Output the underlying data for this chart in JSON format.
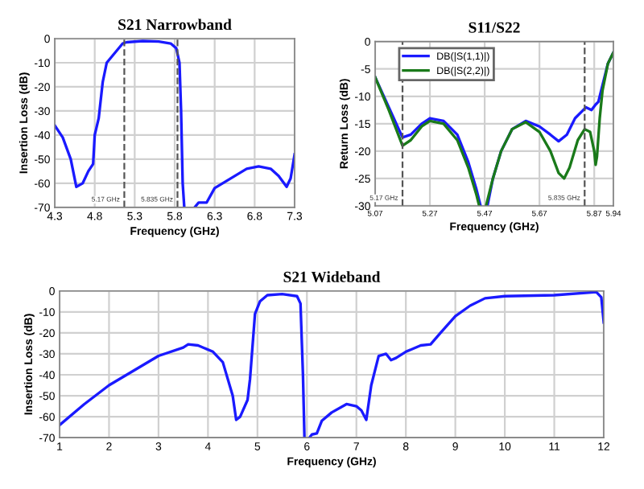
{
  "chart_data": [
    {
      "type": "line",
      "title": "S21 Narrowband",
      "xlabel": "Frequency (GHz)",
      "ylabel": "Insertion Loss (dB)",
      "xlim": [
        4.3,
        7.3
      ],
      "xticks": [
        4.3,
        4.8,
        5.3,
        5.8,
        6.3,
        6.8,
        7.3
      ],
      "ylim": [
        -70,
        0
      ],
      "yticks": [
        -70,
        -60,
        -50,
        -40,
        -30,
        -20,
        -10,
        0
      ],
      "grid": true,
      "legend": false,
      "ref_lines": [
        {
          "axis": "x",
          "value": 5.17,
          "label": "5.17 GHz",
          "line_style": "dashed",
          "color": "#555555"
        },
        {
          "axis": "x",
          "value": 5.835,
          "label": "5.835 GHz",
          "line_style": "dashed",
          "color": "#555555"
        }
      ],
      "series": [
        {
          "color": "#1a1aff",
          "x": [
            4.3,
            4.4,
            4.5,
            4.57,
            4.65,
            4.72,
            4.78,
            4.8,
            4.85,
            4.9,
            4.95,
            5.05,
            5.15,
            5.2,
            5.4,
            5.6,
            5.75,
            5.82,
            5.86,
            5.88,
            5.9,
            5.92,
            6.0,
            6.05,
            6.1,
            6.2,
            6.3,
            6.4,
            6.5,
            6.7,
            6.85,
            7.0,
            7.1,
            7.2,
            7.25,
            7.3
          ],
          "values": [
            -36,
            -41,
            -50,
            -61.5,
            -60,
            -55,
            -52,
            -40,
            -33,
            -18,
            -10,
            -6,
            -2,
            -1.5,
            -1,
            -1.2,
            -2,
            -4,
            -10,
            -30,
            -60,
            -70,
            null,
            -70,
            -68,
            -68,
            -62,
            -60,
            -58,
            -54,
            -53,
            -54,
            -57,
            -61.5,
            -58,
            -48
          ]
        }
      ]
    },
    {
      "type": "line",
      "title": "S11/S22",
      "xlabel": "Frequency (GHz)",
      "ylabel": "Return Loss (dB)",
      "xlim": [
        5.07,
        5.94
      ],
      "xticks": [
        5.07,
        5.27,
        5.47,
        5.67,
        5.87,
        5.94
      ],
      "ylim": [
        -30,
        0
      ],
      "yticks": [
        -30,
        -25,
        -20,
        -15,
        -10,
        -5,
        0
      ],
      "grid": true,
      "legend": "top left",
      "ref_lines": [
        {
          "axis": "x",
          "value": 5.17,
          "label": "5.17 GHz",
          "line_style": "dashed",
          "color": "#555555"
        },
        {
          "axis": "x",
          "value": 5.835,
          "label": "5.835 GHz",
          "line_style": "dashed",
          "color": "#555555"
        }
      ],
      "series": [
        {
          "name": "DB(|S(1,1)|)",
          "color": "#1a1aff",
          "x": [
            5.07,
            5.12,
            5.17,
            5.2,
            5.24,
            5.27,
            5.32,
            5.37,
            5.41,
            5.44,
            5.455,
            5.47,
            5.48,
            5.5,
            5.53,
            5.57,
            5.62,
            5.67,
            5.71,
            5.74,
            5.77,
            5.8,
            5.84,
            5.86,
            5.875,
            5.885,
            5.9,
            5.92,
            5.94
          ],
          "values": [
            -6.5,
            -12,
            -17.5,
            -17,
            -15,
            -14,
            -14.5,
            -17,
            -22,
            -27,
            -30,
            null,
            -30,
            -25,
            -20,
            -16,
            -14.5,
            -15.5,
            -17,
            -18.2,
            -17,
            -14,
            -12,
            -12.5,
            -11.5,
            -11,
            -8,
            -4,
            -2
          ]
        },
        {
          "name": "DB(|S(2,2)|)",
          "color": "#1a7a1a",
          "x": [
            5.07,
            5.12,
            5.17,
            5.2,
            5.24,
            5.27,
            5.32,
            5.37,
            5.41,
            5.44,
            5.45,
            5.46,
            5.475,
            5.5,
            5.53,
            5.57,
            5.62,
            5.67,
            5.71,
            5.74,
            5.76,
            5.78,
            5.81,
            5.835,
            5.855,
            5.87,
            5.875,
            5.88,
            5.89,
            5.9,
            5.92,
            5.94
          ],
          "values": [
            -6.5,
            -12.5,
            -19,
            -18,
            -15.5,
            -14.5,
            -15,
            -18,
            -23,
            -28,
            -30,
            null,
            -30,
            -25,
            -20,
            -16,
            -14.7,
            -16.5,
            -20,
            -24,
            -25,
            -23,
            -18,
            -16,
            -16.5,
            -20,
            -22.5,
            -21,
            -14,
            -9,
            -4,
            -2
          ]
        }
      ]
    },
    {
      "type": "line",
      "title": "S21 Wideband",
      "xlabel": "Frequency (GHz)",
      "ylabel": "Insertion Loss (dB)",
      "xlim": [
        1,
        12
      ],
      "xticks": [
        1,
        2,
        3,
        4,
        5,
        6,
        7,
        8,
        9,
        10,
        11,
        12
      ],
      "ylim": [
        -70,
        0
      ],
      "yticks": [
        -70,
        -60,
        -50,
        -40,
        -30,
        -20,
        -10,
        0
      ],
      "grid": true,
      "legend": false,
      "series": [
        {
          "color": "#1a1aff",
          "x": [
            1,
            1.5,
            2,
            2.5,
            3,
            3.5,
            3.6,
            3.8,
            4.1,
            4.3,
            4.5,
            4.57,
            4.65,
            4.8,
            4.85,
            4.95,
            5.05,
            5.2,
            5.5,
            5.8,
            5.87,
            5.92,
            5.95,
            6.0,
            6.05,
            6.1,
            6.2,
            6.3,
            6.5,
            6.8,
            7.0,
            7.1,
            7.2,
            7.3,
            7.45,
            7.6,
            7.7,
            7.8,
            8.0,
            8.3,
            8.5,
            8.7,
            9.0,
            9.3,
            9.6,
            10,
            11,
            11.85,
            11.95,
            12
          ],
          "values": [
            -64,
            -54,
            -45,
            -38,
            -31,
            -27,
            -25.5,
            -26,
            -29,
            -34,
            -50,
            -61.5,
            -60,
            -52,
            -42,
            -11,
            -5,
            -2,
            -1.5,
            -2.5,
            -6,
            -40,
            -70,
            null,
            -70,
            -68.5,
            -68,
            -62,
            -58,
            -54,
            -55,
            -57,
            -61.5,
            -45,
            -31,
            -30,
            -33,
            -32,
            -29,
            -26,
            -25.5,
            -20,
            -12,
            -7,
            -3.5,
            -2.5,
            -2,
            -0.5,
            -3,
            -15
          ]
        }
      ]
    }
  ]
}
